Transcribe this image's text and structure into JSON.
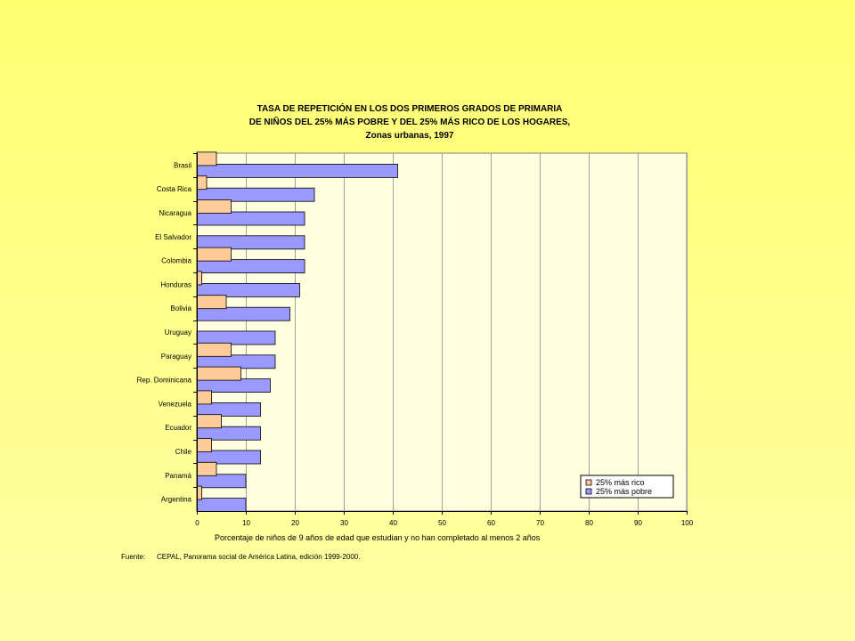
{
  "chart_data": {
    "type": "bar",
    "orientation": "horizontal",
    "title_lines": [
      "TASA DE REPETICIÓN EN LOS DOS PRIMEROS GRADOS DE PRIMARIA",
      "DE NIÑOS DEL 25% MÁS POBRE Y DEL 25% MÁS RICO DE LOS HOGARES,",
      "Zonas urbanas, 1997"
    ],
    "categories": [
      "Brasil",
      "Costa Rica",
      "Nicaragua",
      "El Salvador",
      "Colombia",
      "Honduras",
      "Bolivia",
      "Uruguay",
      "Paraguay",
      "Rep. Dominicana",
      "Venezuela",
      "Ecuador",
      "Chile",
      "Panamá",
      "Argentina"
    ],
    "series": [
      {
        "name": "25% más rico",
        "color": "#ffcc99",
        "values": [
          4,
          2,
          7,
          0,
          7,
          1,
          6,
          0,
          7,
          9,
          3,
          5,
          3,
          4,
          1
        ]
      },
      {
        "name": "25% más pobre",
        "color": "#9999ff",
        "values": [
          41,
          24,
          22,
          22,
          22,
          21,
          19,
          16,
          16,
          15,
          13,
          13,
          13,
          10,
          10
        ]
      }
    ],
    "xlabel": "Porcentaje de niños de 9 años de edad que estudian y no han completado al menos 2 años",
    "xlim": [
      0,
      100
    ],
    "xticks": [
      0,
      10,
      20,
      30,
      40,
      50,
      60,
      70,
      80,
      90,
      100
    ],
    "grid": true,
    "legend_position": "bottom-right",
    "plot_background": "#ffffe0"
  },
  "source": {
    "label": "Fuente:",
    "text": "CEPAL, Panorama social de América Latina, edición 1999-2000."
  }
}
